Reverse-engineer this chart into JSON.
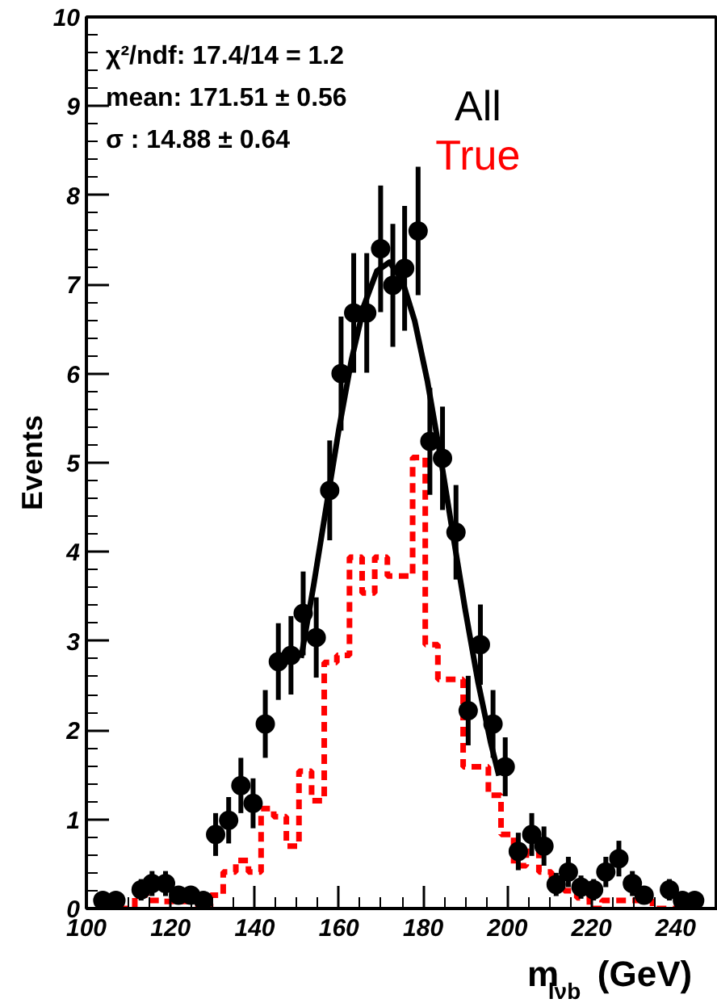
{
  "chart_data": {
    "type": "scatter",
    "xlabel": "m$_{lνb}$ (GeV)",
    "ylabel": "Events",
    "annotations": [
      "χ²/ndf: 17.4/14 = 1.2",
      "mean: 171.51 ± 0.56",
      "σ       : 14.88 ± 0.64"
    ],
    "xlim": [
      100,
      250
    ],
    "ylim": [
      0,
      10
    ],
    "xticks": [
      100,
      120,
      140,
      160,
      180,
      200,
      220,
      240
    ],
    "yticks": [
      0,
      1,
      2,
      3,
      4,
      5,
      6,
      7,
      8,
      9,
      10
    ],
    "grid": false,
    "legend": "top right",
    "series": [
      {
        "name": "True",
        "type": "step",
        "color": "#ff0000",
        "line_style": "dashed",
        "x": [
          104,
          107,
          110,
          113,
          116,
          119,
          122,
          125,
          128,
          131,
          134,
          137,
          140,
          143,
          146,
          149,
          152,
          155,
          158,
          161,
          164,
          167,
          170,
          173,
          176,
          179,
          182,
          185,
          188,
          191,
          194,
          197,
          200,
          203,
          206,
          209,
          212,
          215,
          218,
          221,
          224,
          227,
          230,
          233,
          236,
          239,
          242,
          245
        ],
        "values": [
          0,
          0,
          0,
          0.15,
          0.09,
          0.08,
          0.08,
          0.08,
          0,
          0.15,
          0.41,
          0.54,
          0.41,
          1.12,
          1.03,
          0.7,
          1.54,
          1.21,
          2.76,
          2.84,
          3.94,
          3.54,
          3.94,
          3.73,
          3.73,
          5.06,
          2.96,
          2.57,
          2.57,
          1.59,
          1.59,
          1.27,
          0.83,
          0.48,
          0.64,
          0.41,
          0.22,
          0.2,
          0.12,
          0,
          0.09,
          0.09,
          0.09,
          0.09,
          0,
          0,
          0,
          0
        ]
      },
      {
        "type": "line",
        "color": "#000000",
        "x": [
          151,
          154,
          157,
          160,
          163,
          166,
          169,
          172,
          175,
          178,
          181,
          184,
          187,
          190,
          193,
          196,
          198
        ],
        "values": [
          2.81,
          3.63,
          4.51,
          5.38,
          6.16,
          6.77,
          7.15,
          7.25,
          7.05,
          6.59,
          5.92,
          5.1,
          4.22,
          3.35,
          2.55,
          1.87,
          1.49
        ]
      },
      {
        "name": "All",
        "color": "#000000",
        "marker": "circle",
        "x": [
          103.9,
          107,
          113,
          115.6,
          118.8,
          121.9,
          124.8,
          127.8,
          130.7,
          133.8,
          136.7,
          139.6,
          142.5,
          145.6,
          148.6,
          151.5,
          154.6,
          157.8,
          160.5,
          163.5,
          166.6,
          169.9,
          172.8,
          175.6,
          178.8,
          181.6,
          184.6,
          187.8,
          190.7,
          193.6,
          196.6,
          199.5,
          202.6,
          205.8,
          208.7,
          211.6,
          214.5,
          217.5,
          220.5,
          223.4,
          226.5,
          229.7,
          232.5,
          238.5,
          241.6,
          244.5
        ],
        "values": [
          0.09,
          0.09,
          0.21,
          0.28,
          0.28,
          0.15,
          0.15,
          0.09,
          0.83,
          0.99,
          1.38,
          1.18,
          2.07,
          2.77,
          2.84,
          3.31,
          3.04,
          4.69,
          6.0,
          6.68,
          6.68,
          7.4,
          6.99,
          7.18,
          7.6,
          5.24,
          5.05,
          4.22,
          2.22,
          2.96,
          2.07,
          1.59,
          0.64,
          0.83,
          0.7,
          0.27,
          0.41,
          0.24,
          0.21,
          0.41,
          0.56,
          0.28,
          0.15,
          0.21,
          0.09,
          0.09
        ],
        "errors": [
          0.08,
          0.08,
          0.12,
          0.14,
          0.14,
          0.1,
          0.1,
          0.08,
          0.24,
          0.26,
          0.31,
          0.28,
          0.38,
          0.43,
          0.44,
          0.47,
          0.45,
          0.56,
          0.64,
          0.67,
          0.67,
          0.71,
          0.69,
          0.7,
          0.72,
          0.6,
          0.58,
          0.53,
          0.39,
          0.45,
          0.38,
          0.33,
          0.21,
          0.24,
          0.22,
          0.13,
          0.17,
          0.13,
          0.12,
          0.17,
          0.2,
          0.14,
          0.1,
          0.12,
          0.08,
          0.08
        ]
      }
    ]
  }
}
